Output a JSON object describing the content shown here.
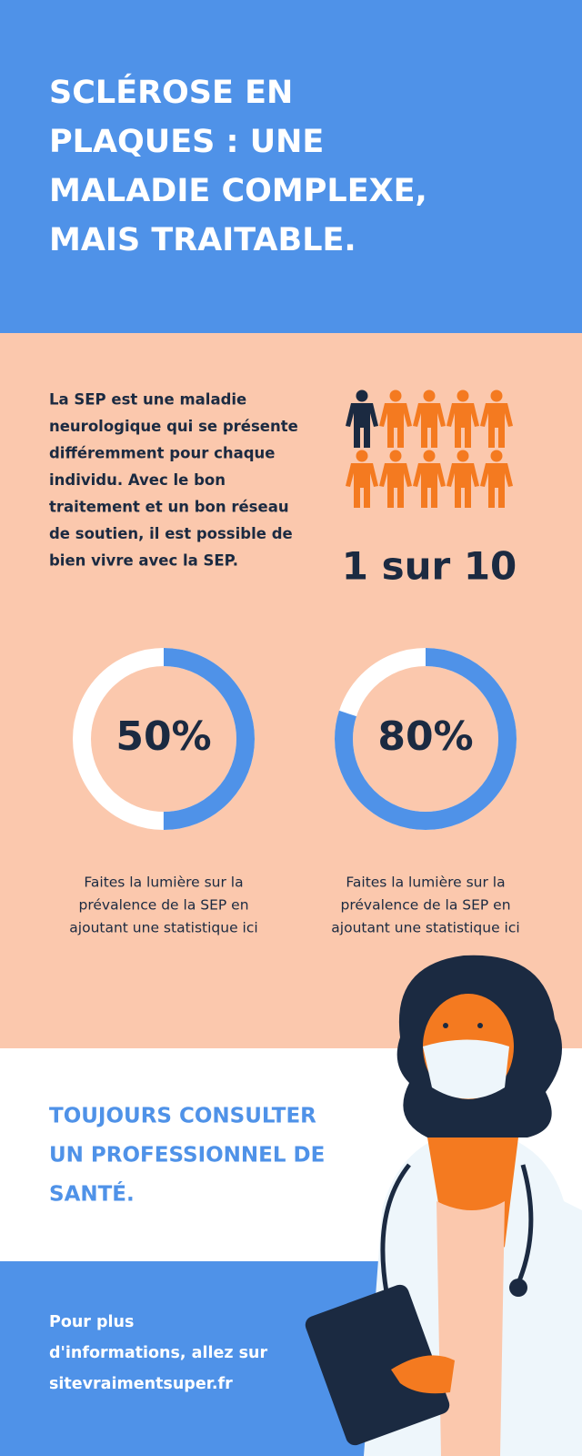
{
  "header": {
    "title_lines": [
      "SCLÉROSE EN",
      "PLAQUES : UNE",
      "MALADIE COMPLEXE,",
      "MAIS TRAITABLE."
    ]
  },
  "intro": {
    "lines": [
      "La SEP est une maladie",
      "neurologique qui se présente",
      "différemment pour chaque",
      "individu. Avec le bon",
      "traitement et un bon réseau",
      "de soutien, il est possible de",
      "bien vivre avec la SEP."
    ]
  },
  "ratio": {
    "label": "1 sur 10"
  },
  "stats": [
    {
      "value": 50,
      "value_label": "50%",
      "caption_lines": [
        "Faites la lumière sur la",
        "prévalence de la SEP en",
        "ajoutant une statistique ici"
      ]
    },
    {
      "value": 80,
      "value_label": "80%",
      "caption_lines": [
        "Faites la lumière sur la",
        "prévalence de la SEP en",
        "ajoutant une statistique ici"
      ]
    }
  ],
  "advice": {
    "lines": [
      "TOUJOURS CONSULTER",
      "UN PROFESSIONNEL DE",
      "SANTÉ."
    ]
  },
  "footer": {
    "lines": [
      "Pour plus",
      "d'informations, allez sur",
      "sitevraimentsuper.fr"
    ]
  }
}
